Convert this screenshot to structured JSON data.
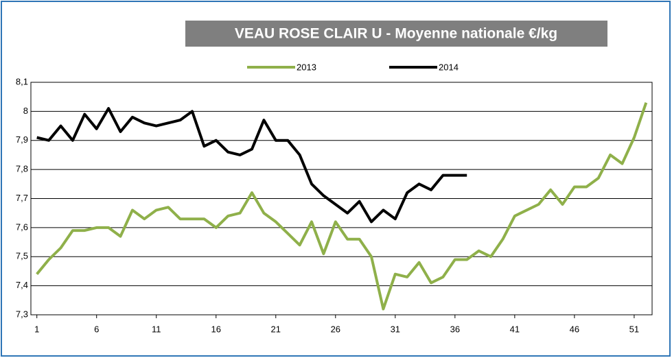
{
  "chart_data": {
    "type": "line",
    "title": "VEAU ROSE CLAIR U - Moyenne nationale €/kg",
    "x": [
      1,
      2,
      3,
      4,
      5,
      6,
      7,
      8,
      9,
      10,
      11,
      12,
      13,
      14,
      15,
      16,
      17,
      18,
      19,
      20,
      21,
      22,
      23,
      24,
      25,
      26,
      27,
      28,
      29,
      30,
      31,
      32,
      33,
      34,
      35,
      36,
      37,
      38,
      39,
      40,
      41,
      42,
      43,
      44,
      45,
      46,
      47,
      48,
      49,
      50,
      51,
      52
    ],
    "series": [
      {
        "name": "2013",
        "color": "#8fb04a",
        "values": [
          7.44,
          7.49,
          7.53,
          7.59,
          7.59,
          7.6,
          7.6,
          7.57,
          7.66,
          7.63,
          7.66,
          7.67,
          7.63,
          7.63,
          7.63,
          7.6,
          7.64,
          7.65,
          7.72,
          7.65,
          7.62,
          7.58,
          7.54,
          7.62,
          7.51,
          7.62,
          7.56,
          7.56,
          7.5,
          7.32,
          7.44,
          7.43,
          7.48,
          7.41,
          7.43,
          7.49,
          7.49,
          7.52,
          7.5,
          7.56,
          7.64,
          7.66,
          7.68,
          7.73,
          7.68,
          7.74,
          7.74,
          7.77,
          7.85,
          7.82,
          7.91,
          8.03
        ]
      },
      {
        "name": "2014",
        "color": "#000000",
        "values": [
          7.91,
          7.9,
          7.95,
          7.9,
          7.99,
          7.94,
          8.01,
          7.93,
          7.98,
          7.96,
          7.95,
          7.96,
          7.97,
          8.0,
          7.88,
          7.9,
          7.86,
          7.85,
          7.87,
          7.97,
          7.9,
          7.9,
          7.85,
          7.75,
          7.71,
          7.68,
          7.65,
          7.69,
          7.62,
          7.66,
          7.63,
          7.72,
          7.75,
          7.73,
          7.78,
          7.78,
          7.78,
          null,
          null,
          null,
          null,
          null,
          null,
          null,
          null,
          null,
          null,
          null,
          null,
          null,
          null,
          null
        ]
      }
    ],
    "xlim": [
      0.5,
      52.5
    ],
    "xticks": [
      1,
      6,
      11,
      16,
      21,
      26,
      31,
      36,
      41,
      46,
      51
    ],
    "ylim": [
      7.3,
      8.1
    ],
    "yticks": [
      {
        "value": 7.3,
        "label": "7,3"
      },
      {
        "value": 7.4,
        "label": "7,4"
      },
      {
        "value": 7.5,
        "label": "7,5"
      },
      {
        "value": 7.6,
        "label": "7,6"
      },
      {
        "value": 7.7,
        "label": "7,7"
      },
      {
        "value": 7.8,
        "label": "7,8"
      },
      {
        "value": 7.9,
        "label": "7,9"
      },
      8,
      {
        "value": 8.1,
        "label": "8,1"
      }
    ],
    "grid": true
  }
}
